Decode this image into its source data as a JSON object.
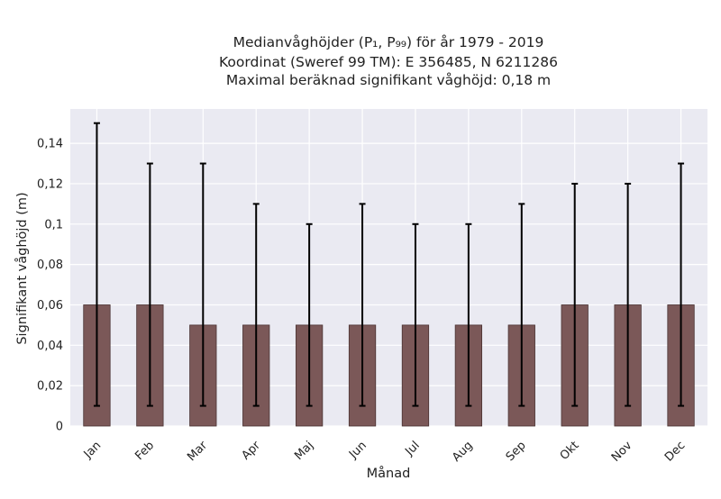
{
  "chart_data": {
    "type": "bar",
    "title_lines": [
      "Medianvåghöjder (P₁, P₉₉) för år 1979 - 2019",
      "Koordinat (Sweref 99 TM): E 356485, N 6211286",
      "Maximal beräknad signifikant våghöjd: 0,18 m"
    ],
    "xlabel": "Månad",
    "ylabel": "Signifikant våghöjd (m)",
    "categories": [
      "Jan",
      "Feb",
      "Mar",
      "Apr",
      "Maj",
      "Jun",
      "Jul",
      "Aug",
      "Sep",
      "Okt",
      "Nov",
      "Dec"
    ],
    "values": [
      0.06,
      0.06,
      0.05,
      0.05,
      0.05,
      0.05,
      0.05,
      0.05,
      0.05,
      0.06,
      0.06,
      0.06
    ],
    "p1": [
      0.01,
      0.01,
      0.01,
      0.01,
      0.01,
      0.01,
      0.01,
      0.01,
      0.01,
      0.01,
      0.01,
      0.01
    ],
    "p99": [
      0.15,
      0.13,
      0.13,
      0.11,
      0.1,
      0.11,
      0.1,
      0.1,
      0.11,
      0.12,
      0.12,
      0.13
    ],
    "yticks": [
      0,
      0.02,
      0.04,
      0.06,
      0.08,
      0.1,
      0.12,
      0.14
    ],
    "ytick_labels": [
      "0",
      "0,02",
      "0,04",
      "0,06",
      "0,08",
      "0,1",
      "0,12",
      "0,14"
    ],
    "ylim": [
      0,
      0.157
    ],
    "grid": true,
    "colors": {
      "bar": "#7b5858",
      "bar_edge": "#4a3333",
      "plot_bg": "#eaeaf2",
      "grid": "#ffffff",
      "error": "#000000"
    }
  }
}
